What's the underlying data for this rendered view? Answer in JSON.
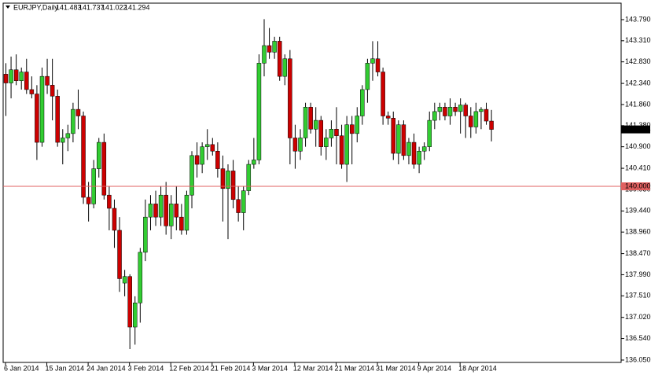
{
  "chart_data": {
    "type": "candlestick",
    "title": "EURJPY,Daily",
    "categories": [
      "6 Jan 2014",
      null,
      null,
      null,
      null,
      null,
      null,
      null,
      "15 Jan 2014",
      null,
      null,
      null,
      null,
      null,
      null,
      null,
      "24 Jan 2014",
      null,
      null,
      null,
      null,
      null,
      null,
      null,
      "3 Feb 2014",
      null,
      null,
      null,
      null,
      null,
      null,
      null,
      "12 Feb 2014",
      null,
      null,
      null,
      null,
      null,
      null,
      null,
      "21 Feb 2014",
      null,
      null,
      null,
      null,
      null,
      null,
      null,
      "3 Mar 2014",
      null,
      null,
      null,
      null,
      null,
      null,
      null,
      "12 Mar 2014",
      null,
      null,
      null,
      null,
      null,
      null,
      null,
      "21 Mar 2014",
      null,
      null,
      null,
      null,
      null,
      null,
      null,
      "31 Mar 2014",
      null,
      null,
      null,
      null,
      null,
      null,
      null,
      "9 Apr 2014",
      null,
      null,
      null,
      null,
      null,
      null,
      null,
      "18 Apr 2014",
      null,
      null,
      null,
      null,
      null,
      null
    ],
    "open": [
      142.55,
      142.35,
      142.65,
      142.4,
      142.6,
      142.2,
      142.1,
      141.0,
      142.5,
      142.3,
      142.05,
      141.0,
      141.1,
      141.2,
      141.75,
      141.6,
      139.75,
      139.6,
      140.4,
      141.0,
      139.8,
      139.5,
      139.0,
      137.8,
      137.95,
      136.8,
      137.35,
      138.5,
      139.3,
      139.6,
      139.3,
      139.8,
      139.1,
      139.6,
      139.3,
      139.0,
      139.8,
      140.7,
      140.5,
      140.9,
      140.95,
      140.8,
      140.4,
      139.95,
      140.35,
      139.7,
      139.4,
      139.9,
      140.5,
      140.6,
      142.8,
      143.2,
      143.05,
      143.3,
      142.5,
      142.9,
      141.1,
      140.8,
      141.1,
      141.8,
      141.3,
      141.5,
      140.9,
      141.1,
      141.3,
      141.15,
      140.5,
      141.4,
      141.2,
      141.6,
      142.2,
      142.8,
      142.9,
      142.6,
      141.6,
      141.55,
      140.75,
      141.4,
      140.7,
      141.0,
      140.5,
      140.8,
      140.9,
      141.5,
      141.7,
      141.8,
      141.6,
      141.8,
      141.7,
      141.85,
      141.6,
      141.35,
      141.7,
      141.75,
      141.483
    ],
    "high": [
      142.8,
      142.95,
      143.0,
      142.7,
      142.9,
      142.5,
      142.3,
      142.7,
      142.9,
      142.9,
      142.2,
      141.3,
      141.4,
      141.9,
      142.2,
      141.7,
      140.1,
      140.6,
      141.1,
      141.2,
      140.0,
      139.7,
      139.3,
      138.1,
      138.0,
      137.5,
      138.6,
      139.7,
      139.8,
      139.9,
      140.0,
      140.1,
      139.8,
      140.0,
      139.6,
      139.9,
      140.8,
      141.0,
      141.0,
      141.3,
      141.1,
      141.0,
      140.7,
      140.5,
      140.6,
      140.0,
      140.0,
      140.6,
      141.1,
      143.0,
      143.8,
      143.6,
      143.4,
      143.4,
      143.0,
      143.1,
      141.4,
      141.3,
      141.9,
      141.9,
      141.8,
      141.6,
      141.3,
      141.5,
      141.8,
      141.4,
      141.6,
      141.6,
      141.8,
      142.3,
      142.9,
      143.3,
      143.3,
      142.7,
      141.7,
      141.7,
      141.5,
      141.5,
      141.1,
      141.2,
      140.9,
      141.0,
      141.7,
      141.9,
      141.9,
      141.9,
      142.0,
      141.9,
      142.0,
      141.9,
      141.8,
      141.9,
      141.8,
      141.9,
      141.737
    ],
    "low": [
      141.6,
      142.0,
      142.3,
      142.2,
      142.1,
      142.0,
      140.6,
      140.9,
      142.1,
      141.5,
      140.9,
      140.5,
      140.8,
      141.0,
      141.3,
      139.6,
      139.2,
      139.5,
      140.2,
      139.7,
      139.0,
      138.6,
      137.6,
      137.5,
      136.3,
      136.4,
      136.9,
      138.3,
      139.0,
      139.1,
      139.1,
      138.9,
      138.8,
      139.0,
      138.9,
      138.9,
      139.5,
      140.2,
      140.3,
      140.6,
      140.7,
      140.2,
      139.2,
      138.8,
      139.5,
      139.2,
      139.0,
      139.8,
      140.4,
      140.5,
      142.5,
      142.9,
      142.9,
      142.4,
      142.3,
      140.5,
      140.4,
      140.6,
      140.9,
      141.2,
      140.9,
      140.7,
      140.6,
      140.9,
      140.5,
      140.4,
      140.1,
      140.5,
      141.0,
      141.4,
      141.9,
      142.4,
      142.5,
      141.4,
      141.4,
      140.6,
      140.5,
      140.6,
      140.5,
      140.4,
      140.3,
      140.6,
      140.8,
      141.3,
      141.5,
      141.5,
      141.4,
      141.6,
      141.2,
      141.1,
      141.1,
      141.2,
      141.3,
      141.4,
      141.022
    ],
    "close": [
      142.35,
      142.65,
      142.4,
      142.6,
      142.2,
      142.1,
      141.0,
      142.5,
      142.3,
      142.05,
      141.0,
      141.1,
      141.2,
      141.75,
      141.6,
      139.75,
      139.6,
      140.4,
      141.0,
      139.8,
      139.5,
      139.0,
      137.9,
      137.95,
      136.8,
      137.35,
      138.5,
      139.3,
      139.6,
      139.3,
      139.8,
      139.1,
      139.6,
      139.3,
      139.0,
      139.8,
      140.7,
      140.5,
      140.9,
      140.95,
      140.8,
      140.4,
      139.95,
      140.35,
      139.7,
      139.4,
      139.9,
      140.5,
      140.6,
      142.8,
      143.2,
      143.05,
      143.3,
      142.5,
      142.9,
      141.1,
      140.8,
      141.1,
      141.8,
      141.3,
      141.5,
      140.9,
      141.1,
      141.3,
      141.15,
      140.5,
      141.4,
      141.2,
      141.6,
      142.2,
      142.8,
      142.9,
      142.6,
      141.6,
      141.55,
      140.75,
      141.4,
      140.7,
      141.0,
      140.5,
      140.8,
      140.9,
      141.5,
      141.7,
      141.8,
      141.6,
      141.8,
      141.7,
      141.85,
      141.6,
      141.35,
      141.7,
      141.75,
      141.483,
      141.294
    ],
    "up_color": "#32cd32",
    "down_color": "#cc0000",
    "ylim": [
      135.996,
      144.165
    ],
    "yticks": [
      {
        "value": 143.79,
        "label": "143.790"
      },
      {
        "value": 143.31,
        "label": "143.310"
      },
      {
        "value": 142.83,
        "label": "142.830"
      },
      {
        "value": 142.34,
        "label": "142.340"
      },
      {
        "value": 141.86,
        "label": "141.860"
      },
      {
        "value": 141.38,
        "label": "141.380"
      },
      {
        "value": 140.9,
        "label": "140.900"
      },
      {
        "value": 140.41,
        "label": "140.410"
      },
      {
        "value": 139.93,
        "label": "139.930"
      },
      {
        "value": 139.44,
        "label": "139.440"
      },
      {
        "value": 138.96,
        "label": "138.960"
      },
      {
        "value": 138.47,
        "label": "138.470"
      },
      {
        "value": 137.99,
        "label": "137.990"
      },
      {
        "value": 137.51,
        "label": "137.510"
      },
      {
        "value": 137.02,
        "label": "137.020"
      },
      {
        "value": 136.54,
        "label": "136.540"
      },
      {
        "value": 136.05,
        "label": "136.050"
      }
    ],
    "hline": {
      "value": 140,
      "label": "140.000",
      "color": "#e06060"
    }
  }
}
